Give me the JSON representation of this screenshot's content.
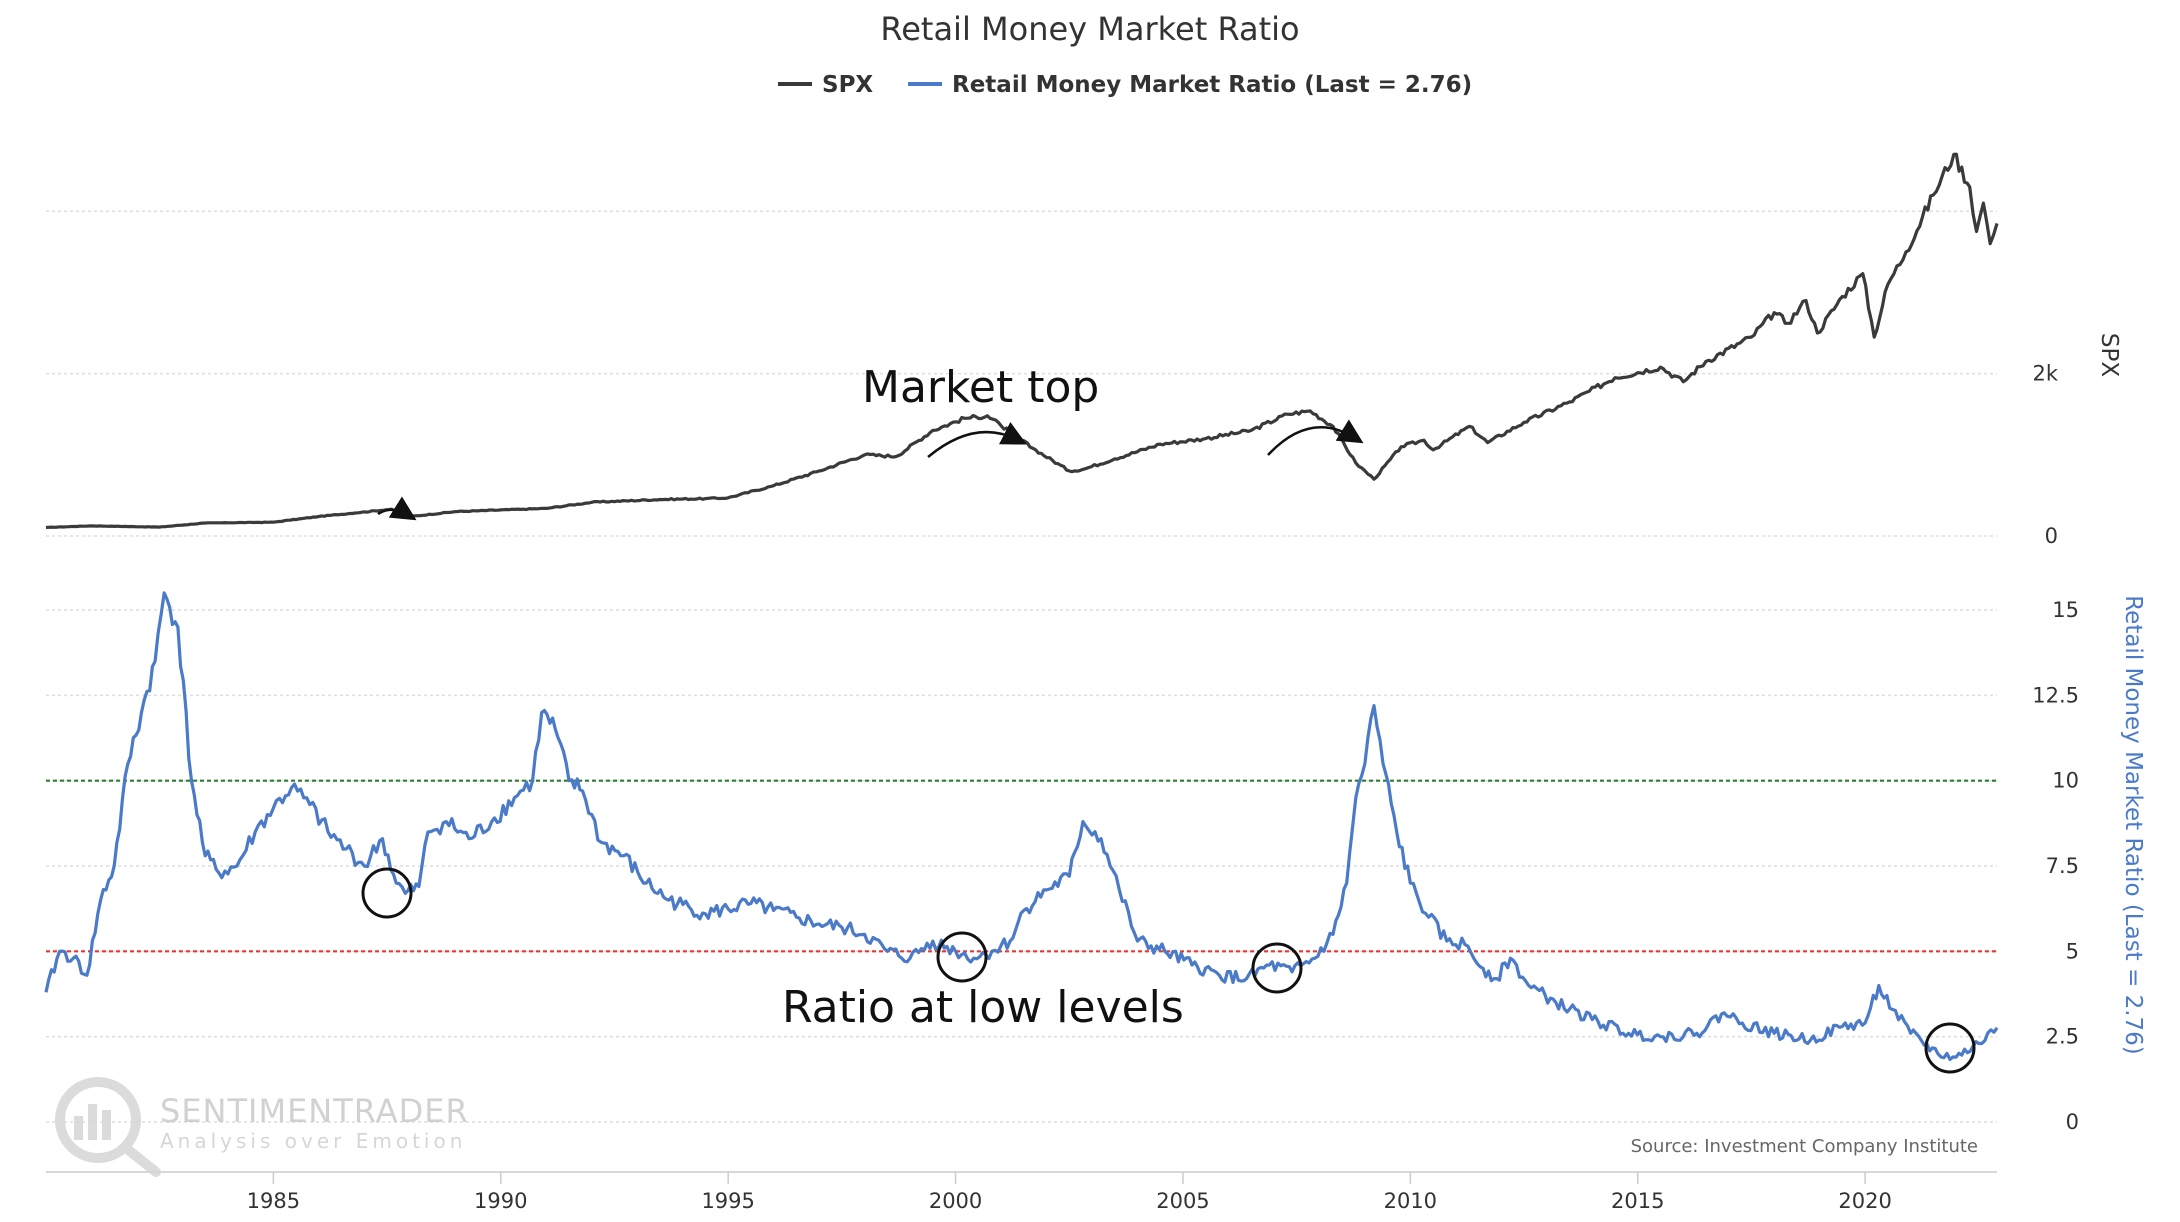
{
  "chart_data": {
    "type": "line",
    "title": "Retail Money Market Ratio",
    "legend": {
      "placement": "top-center",
      "entries": [
        "SPX",
        "Retail Money Market Ratio (Last = 2.76)"
      ]
    },
    "colors": {
      "spx": "#3a3a3a",
      "ratio": "#4a7ac8",
      "upper_threshold": "#2e7d32",
      "lower_threshold": "#e53935",
      "grid": "#dddddd"
    },
    "x_axis": {
      "range": [
        1980.0,
        2022.9
      ],
      "ticks": [
        "1985",
        "1990",
        "1995",
        "2000",
        "2005",
        "2010",
        "2015",
        "2020"
      ]
    },
    "spx_axis": {
      "title": "SPX",
      "range": [
        0,
        5000
      ],
      "tick_labels": [
        "0",
        "2k"
      ],
      "tick_values": [
        0,
        2000
      ]
    },
    "ratio_axis": {
      "title": "Retail Money Market Ratio (Last = 2.76)",
      "range": [
        0,
        15
      ],
      "tick_labels": [
        "0",
        "2.5",
        "5",
        "7.5",
        "10",
        "12.5",
        "15"
      ],
      "tick_values": [
        0,
        2.5,
        5,
        7.5,
        10,
        12.5,
        15
      ]
    },
    "thresholds": [
      {
        "name": "upper",
        "value": 10.0
      },
      {
        "name": "lower",
        "value": 5.0
      }
    ],
    "series": [
      {
        "name": "SPX",
        "points": [
          [
            1980.0,
            105
          ],
          [
            1981.0,
            125
          ],
          [
            1982.5,
            110
          ],
          [
            1983.5,
            160
          ],
          [
            1985.0,
            170
          ],
          [
            1986.0,
            240
          ],
          [
            1987.6,
            330
          ],
          [
            1987.85,
            230
          ],
          [
            1989.0,
            300
          ],
          [
            1990.5,
            330
          ],
          [
            1991.0,
            340
          ],
          [
            1992.0,
            415
          ],
          [
            1993.5,
            450
          ],
          [
            1994.5,
            460
          ],
          [
            1995.0,
            470
          ],
          [
            1996.0,
            620
          ],
          [
            1997.0,
            800
          ],
          [
            1998.0,
            1000
          ],
          [
            1998.7,
            980
          ],
          [
            1999.5,
            1300
          ],
          [
            2000.2,
            1450
          ],
          [
            2000.7,
            1480
          ],
          [
            2001.0,
            1360
          ],
          [
            2001.7,
            1080
          ],
          [
            2002.5,
            800
          ],
          [
            2002.8,
            820
          ],
          [
            2003.5,
            950
          ],
          [
            2004.5,
            1130
          ],
          [
            2005.5,
            1200
          ],
          [
            2006.5,
            1300
          ],
          [
            2007.3,
            1500
          ],
          [
            2007.8,
            1540
          ],
          [
            2008.3,
            1350
          ],
          [
            2008.8,
            900
          ],
          [
            2009.2,
            700
          ],
          [
            2009.8,
            1100
          ],
          [
            2010.3,
            1180
          ],
          [
            2010.5,
            1060
          ],
          [
            2011.3,
            1350
          ],
          [
            2011.7,
            1150
          ],
          [
            2012.5,
            1400
          ],
          [
            2013.5,
            1650
          ],
          [
            2014.5,
            1950
          ],
          [
            2015.5,
            2080
          ],
          [
            2016.0,
            1900
          ],
          [
            2016.5,
            2150
          ],
          [
            2017.5,
            2450
          ],
          [
            2018.0,
            2750
          ],
          [
            2018.3,
            2620
          ],
          [
            2018.7,
            2900
          ],
          [
            2018.95,
            2500
          ],
          [
            2019.5,
            2950
          ],
          [
            2019.95,
            3230
          ],
          [
            2020.2,
            2450
          ],
          [
            2020.5,
            3100
          ],
          [
            2020.9,
            3500
          ],
          [
            2021.5,
            4200
          ],
          [
            2021.95,
            4700
          ],
          [
            2022.3,
            4300
          ],
          [
            2022.45,
            3750
          ],
          [
            2022.6,
            4100
          ],
          [
            2022.75,
            3600
          ],
          [
            2022.9,
            3850
          ]
        ]
      },
      {
        "name": "Retail Money Market Ratio (Last = 2.76)",
        "points": [
          [
            1980.0,
            3.8
          ],
          [
            1980.3,
            5.0
          ],
          [
            1980.6,
            4.8
          ],
          [
            1980.9,
            4.3
          ],
          [
            1981.2,
            6.5
          ],
          [
            1981.5,
            7.5
          ],
          [
            1981.8,
            10.5
          ],
          [
            1982.1,
            12.0
          ],
          [
            1982.4,
            13.5
          ],
          [
            1982.6,
            15.5
          ],
          [
            1982.9,
            14.5
          ],
          [
            1983.2,
            10.0
          ],
          [
            1983.5,
            7.8
          ],
          [
            1983.8,
            7.3
          ],
          [
            1984.2,
            7.5
          ],
          [
            1984.6,
            8.5
          ],
          [
            1985.0,
            9.2
          ],
          [
            1985.4,
            9.8
          ],
          [
            1985.8,
            9.3
          ],
          [
            1986.2,
            8.5
          ],
          [
            1986.6,
            8.0
          ],
          [
            1987.0,
            7.5
          ],
          [
            1987.4,
            8.3
          ],
          [
            1987.7,
            7.0
          ],
          [
            1987.9,
            6.7
          ],
          [
            1988.2,
            6.9
          ],
          [
            1988.4,
            8.5
          ],
          [
            1988.8,
            8.8
          ],
          [
            1989.3,
            8.3
          ],
          [
            1989.8,
            8.8
          ],
          [
            1990.3,
            9.5
          ],
          [
            1990.7,
            10.0
          ],
          [
            1990.9,
            12.0
          ],
          [
            1991.2,
            11.5
          ],
          [
            1991.5,
            10.0
          ],
          [
            1991.8,
            9.7
          ],
          [
            1992.2,
            8.2
          ],
          [
            1992.7,
            7.8
          ],
          [
            1993.2,
            7.0
          ],
          [
            1993.7,
            6.5
          ],
          [
            1994.5,
            6.1
          ],
          [
            1995.5,
            6.4
          ],
          [
            1996.0,
            6.2
          ],
          [
            1996.5,
            6.0
          ],
          [
            1997.0,
            5.8
          ],
          [
            1997.5,
            5.7
          ],
          [
            1998.0,
            5.5
          ],
          [
            1998.5,
            5.0
          ],
          [
            1999.0,
            4.8
          ],
          [
            1999.5,
            5.3
          ],
          [
            2000.0,
            5.0
          ],
          [
            2000.4,
            4.8
          ],
          [
            2000.8,
            5.0
          ],
          [
            2001.2,
            5.3
          ],
          [
            2001.5,
            6.2
          ],
          [
            2002.0,
            6.8
          ],
          [
            2002.5,
            7.2
          ],
          [
            2002.8,
            8.8
          ],
          [
            2003.2,
            8.3
          ],
          [
            2003.6,
            6.8
          ],
          [
            2004.0,
            5.3
          ],
          [
            2004.6,
            5.0
          ],
          [
            2005.2,
            4.6
          ],
          [
            2005.8,
            4.3
          ],
          [
            2006.4,
            4.2
          ],
          [
            2006.9,
            4.6
          ],
          [
            2007.4,
            4.4
          ],
          [
            2007.9,
            4.8
          ],
          [
            2008.3,
            5.5
          ],
          [
            2008.6,
            7.0
          ],
          [
            2008.8,
            9.5
          ],
          [
            2009.0,
            10.5
          ],
          [
            2009.2,
            12.2
          ],
          [
            2009.4,
            10.5
          ],
          [
            2009.7,
            8.5
          ],
          [
            2010.0,
            7.0
          ],
          [
            2010.4,
            6.0
          ],
          [
            2010.8,
            5.3
          ],
          [
            2011.2,
            5.2
          ],
          [
            2011.6,
            4.5
          ],
          [
            2011.9,
            4.2
          ],
          [
            2012.2,
            4.8
          ],
          [
            2012.6,
            4.0
          ],
          [
            2013.2,
            3.5
          ],
          [
            2014.0,
            3.0
          ],
          [
            2014.8,
            2.6
          ],
          [
            2015.5,
            2.5
          ],
          [
            2016.3,
            2.6
          ],
          [
            2016.9,
            3.2
          ],
          [
            2017.3,
            2.9
          ],
          [
            2018.0,
            2.6
          ],
          [
            2018.8,
            2.4
          ],
          [
            2019.5,
            2.8
          ],
          [
            2020.0,
            2.9
          ],
          [
            2020.3,
            4.0
          ],
          [
            2020.6,
            3.3
          ],
          [
            2021.0,
            2.6
          ],
          [
            2021.6,
            2.0
          ],
          [
            2022.0,
            1.9
          ],
          [
            2022.5,
            2.3
          ],
          [
            2022.9,
            2.76
          ]
        ]
      }
    ],
    "annotations": [
      {
        "text": "Market top"
      },
      {
        "text": "Ratio at low levels"
      }
    ],
    "source": "Source: Investment Company Institute"
  },
  "watermark": {
    "brand": "SENTIMENTRADER",
    "tagline": "Analysis over Emotion"
  }
}
